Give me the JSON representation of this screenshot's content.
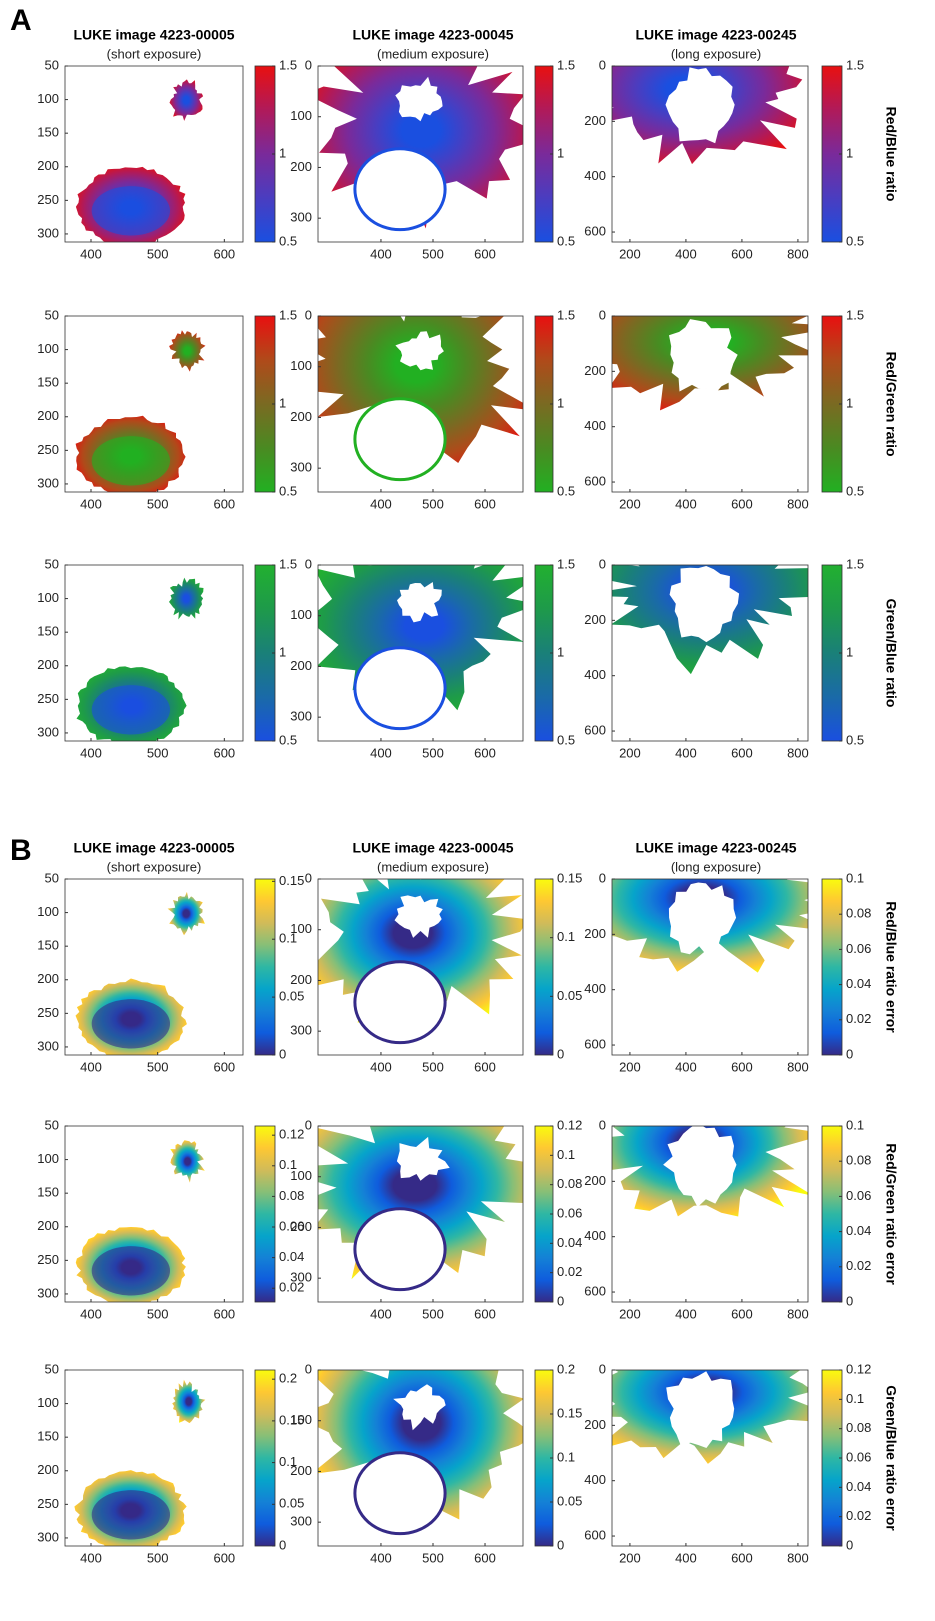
{
  "panel_labels": [
    "A",
    "B"
  ],
  "chart_data": [
    {
      "type": "image",
      "title": "LUKE image 4223-00005",
      "subtitle": "(short exposure)",
      "xlim": [
        361,
        628
      ],
      "xticks": [
        400,
        500,
        600
      ],
      "ylim": [
        50,
        312
      ],
      "yticks": [
        50,
        100,
        150,
        200,
        250,
        300
      ],
      "ydir": "reverse",
      "colormap": "red-blue",
      "clim": [
        0.5,
        1.5
      ],
      "cticks": [
        0.5,
        1,
        1.5
      ]
    },
    {
      "type": "image",
      "title": "LUKE image 4223-00045",
      "subtitle": "(medium exposure)",
      "xlim": [
        279,
        673
      ],
      "xticks": [
        400,
        500,
        600
      ],
      "ylim": [
        0,
        347
      ],
      "yticks": [
        0,
        100,
        200,
        300
      ],
      "ydir": "reverse",
      "colormap": "red-blue",
      "clim": [
        0.5,
        1.5
      ],
      "cticks": [
        0.5,
        1,
        1.5
      ]
    },
    {
      "type": "image",
      "title": "LUKE image 4223-00245",
      "subtitle": "(long exposure)",
      "xlim": [
        136,
        836
      ],
      "xticks": [
        200,
        400,
        600,
        800
      ],
      "ylim": [
        0,
        636
      ],
      "yticks": [
        0,
        200,
        400,
        600
      ],
      "ydir": "reverse",
      "colormap": "red-blue",
      "clim": [
        0.5,
        1.5
      ],
      "cticks": [
        0.5,
        1,
        1.5
      ],
      "colorbar_label": "Red/Blue ratio"
    },
    {
      "type": "image",
      "xlim": [
        361,
        628
      ],
      "xticks": [
        400,
        500,
        600
      ],
      "ylim": [
        50,
        312
      ],
      "yticks": [
        50,
        100,
        150,
        200,
        250,
        300
      ],
      "ydir": "reverse",
      "colormap": "red-green",
      "clim": [
        0.5,
        1.5
      ],
      "cticks": [
        0.5,
        1,
        1.5
      ]
    },
    {
      "type": "image",
      "xlim": [
        279,
        673
      ],
      "xticks": [
        400,
        500,
        600
      ],
      "ylim": [
        0,
        347
      ],
      "yticks": [
        0,
        100,
        200,
        300
      ],
      "ydir": "reverse",
      "colormap": "red-green",
      "clim": [
        0.5,
        1.5
      ],
      "cticks": [
        0.5,
        1,
        1.5
      ]
    },
    {
      "type": "image",
      "xlim": [
        136,
        836
      ],
      "xticks": [
        200,
        400,
        600,
        800
      ],
      "ylim": [
        0,
        636
      ],
      "yticks": [
        0,
        200,
        400,
        600
      ],
      "ydir": "reverse",
      "colormap": "red-green",
      "clim": [
        0.5,
        1.5
      ],
      "cticks": [
        0.5,
        1,
        1.5
      ],
      "colorbar_label": "Red/Green ratio"
    },
    {
      "type": "image",
      "xlim": [
        361,
        628
      ],
      "xticks": [
        400,
        500,
        600
      ],
      "ylim": [
        50,
        312
      ],
      "yticks": [
        50,
        100,
        150,
        200,
        250,
        300
      ],
      "ydir": "reverse",
      "colormap": "green-blue",
      "clim": [
        0.5,
        1.5
      ],
      "cticks": [
        0.5,
        1,
        1.5
      ]
    },
    {
      "type": "image",
      "xlim": [
        279,
        673
      ],
      "xticks": [
        400,
        500,
        600
      ],
      "ylim": [
        0,
        347
      ],
      "yticks": [
        0,
        100,
        200,
        300
      ],
      "ydir": "reverse",
      "colormap": "green-blue",
      "clim": [
        0.5,
        1.5
      ],
      "cticks": [
        0.5,
        1,
        1.5
      ]
    },
    {
      "type": "image",
      "xlim": [
        136,
        836
      ],
      "xticks": [
        200,
        400,
        600,
        800
      ],
      "ylim": [
        0,
        636
      ],
      "yticks": [
        0,
        200,
        400,
        600
      ],
      "ydir": "reverse",
      "colormap": "green-blue",
      "clim": [
        0.5,
        1.5
      ],
      "cticks": [
        0.5,
        1,
        1.5
      ],
      "colorbar_label": "Green/Blue ratio"
    },
    {
      "type": "image",
      "title": "LUKE image 4223-00005",
      "subtitle": "(short exposure)",
      "xlim": [
        361,
        628
      ],
      "xticks": [
        400,
        500,
        600
      ],
      "ylim": [
        50,
        312
      ],
      "yticks": [
        50,
        100,
        150,
        200,
        250,
        300
      ],
      "ydir": "reverse",
      "colormap": "parula",
      "clim": [
        0,
        0.152
      ],
      "cticks": [
        0,
        0.05,
        0.1,
        0.15
      ]
    },
    {
      "type": "image",
      "title": "LUKE image 4223-00045",
      "subtitle": "(medium exposure)",
      "xlim": [
        279,
        673
      ],
      "xticks": [
        400,
        500,
        600
      ],
      "ylim": [
        0,
        347
      ],
      "yticks": [
        0,
        100,
        200,
        300
      ],
      "ydir": "reverse",
      "colormap": "parula",
      "clim": [
        0,
        0.15
      ],
      "cticks": [
        0,
        0.05,
        0.1,
        0.15
      ]
    },
    {
      "type": "image",
      "title": "LUKE image 4223-00245",
      "subtitle": "(long exposure)",
      "xlim": [
        136,
        836
      ],
      "xticks": [
        200,
        400,
        600,
        800
      ],
      "ylim": [
        0,
        636
      ],
      "yticks": [
        0,
        200,
        400,
        600
      ],
      "ydir": "reverse",
      "colormap": "parula",
      "clim": [
        0,
        0.1
      ],
      "cticks": [
        0,
        0.02,
        0.04,
        0.06,
        0.08,
        0.1
      ],
      "colorbar_label": "Red/Blue ratio error"
    },
    {
      "type": "image",
      "xlim": [
        361,
        628
      ],
      "xticks": [
        400,
        500,
        600
      ],
      "ylim": [
        50,
        312
      ],
      "yticks": [
        50,
        100,
        150,
        200,
        250,
        300
      ],
      "ydir": "reverse",
      "colormap": "parula",
      "clim": [
        0.011,
        0.126
      ],
      "cticks": [
        0.02,
        0.04,
        0.06,
        0.08,
        0.1,
        0.12
      ]
    },
    {
      "type": "image",
      "xlim": [
        279,
        673
      ],
      "xticks": [
        400,
        500,
        600
      ],
      "ylim": [
        0,
        347
      ],
      "yticks": [
        0,
        100,
        200,
        300
      ],
      "ydir": "reverse",
      "colormap": "parula",
      "clim": [
        0,
        0.12
      ],
      "cticks": [
        0,
        0.02,
        0.04,
        0.06,
        0.08,
        0.1,
        0.12
      ]
    },
    {
      "type": "image",
      "xlim": [
        136,
        836
      ],
      "xticks": [
        200,
        400,
        600,
        800
      ],
      "ylim": [
        0,
        636
      ],
      "yticks": [
        0,
        200,
        400,
        600
      ],
      "ydir": "reverse",
      "colormap": "parula",
      "clim": [
        0,
        0.1
      ],
      "cticks": [
        0,
        0.02,
        0.04,
        0.06,
        0.08,
        0.1
      ],
      "colorbar_label": "Red/Green ratio error"
    },
    {
      "type": "image",
      "xlim": [
        361,
        628
      ],
      "xticks": [
        400,
        500,
        600
      ],
      "ylim": [
        50,
        312
      ],
      "yticks": [
        50,
        100,
        150,
        200,
        250,
        300
      ],
      "ydir": "reverse",
      "colormap": "parula",
      "clim": [
        0,
        0.211
      ],
      "cticks": [
        0,
        0.05,
        0.1,
        0.15,
        0.2
      ]
    },
    {
      "type": "image",
      "xlim": [
        279,
        673
      ],
      "xticks": [
        400,
        500,
        600
      ],
      "ylim": [
        0,
        347
      ],
      "yticks": [
        0,
        100,
        200,
        300
      ],
      "ydir": "reverse",
      "colormap": "parula",
      "clim": [
        0,
        0.2
      ],
      "cticks": [
        0,
        0.05,
        0.1,
        0.15,
        0.2
      ]
    },
    {
      "type": "image",
      "xlim": [
        136,
        836
      ],
      "xticks": [
        200,
        400,
        600,
        800
      ],
      "ylim": [
        0,
        636
      ],
      "yticks": [
        0,
        200,
        400,
        600
      ],
      "ydir": "reverse",
      "colormap": "parula",
      "clim": [
        0,
        0.12
      ],
      "cticks": [
        0,
        0.02,
        0.04,
        0.06,
        0.08,
        0.1,
        0.12
      ],
      "colorbar_label": "Green/Blue ratio error"
    }
  ]
}
